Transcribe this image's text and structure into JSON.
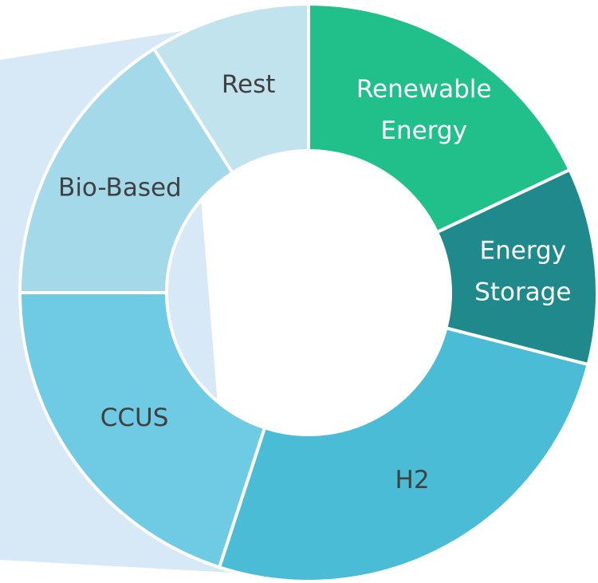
{
  "chart_data": {
    "type": "donut",
    "categories": [
      "Renewable Energy",
      "Energy Storage",
      "H2",
      "CCUS",
      "Bio-Based",
      "Rest"
    ],
    "values": [
      18,
      11,
      26,
      20,
      16,
      9
    ],
    "colors": [
      "#21c08b",
      "#1f898c",
      "#4abcd6",
      "#6fcae3",
      "#a4d9ea",
      "#c1e3ee"
    ],
    "label_colors": [
      "#ffffff",
      "#ffffff",
      "#404040",
      "#404040",
      "#404040",
      "#404040"
    ]
  }
}
